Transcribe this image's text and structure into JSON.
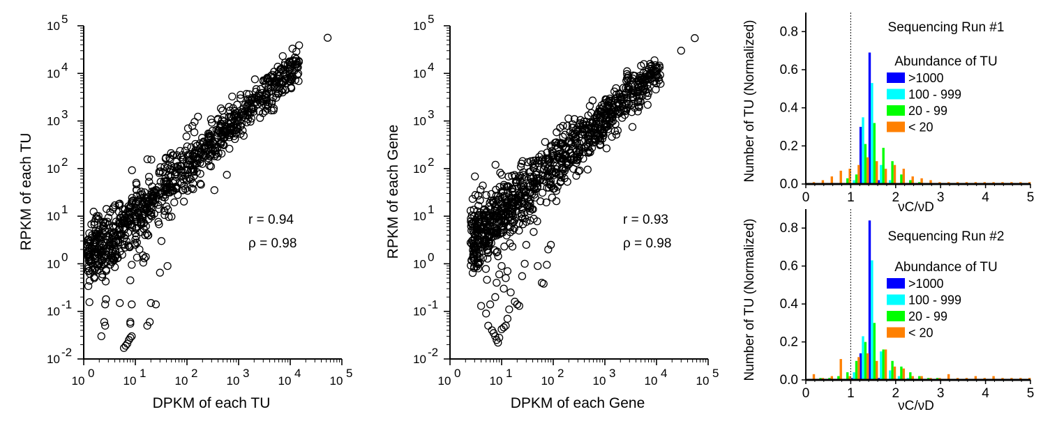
{
  "chart_data": [
    {
      "type": "scatter",
      "xlabel": "DPKM of each TU",
      "ylabel": "RPKM of each TU",
      "x_scale": "log",
      "y_scale": "log",
      "xlim": [
        1,
        100000
      ],
      "ylim": [
        0.01,
        100000
      ],
      "x_ticks": [
        "10^0",
        "10^1",
        "10^2",
        "10^3",
        "10^4",
        "10^5"
      ],
      "y_ticks": [
        "10^-2",
        "10^-1",
        "10^0",
        "10^1",
        "10^2",
        "10^3",
        "10^4",
        "10^5"
      ],
      "annotations": [
        "r = 0.94",
        "ρ = 0.98"
      ],
      "cloud_fit": {
        "slope": 1.0,
        "intercept": 0.05,
        "x_range": [
          1.2,
          15000
        ],
        "spread_dex": 0.22,
        "count": 900
      },
      "points": [
        [
          1.2,
          2.4
        ],
        [
          1.3,
          1.4
        ],
        [
          1.4,
          1.2
        ],
        [
          1.6,
          2.8
        ],
        [
          1.8,
          2.1
        ],
        [
          2.0,
          1.0
        ],
        [
          2.2,
          0.9
        ],
        [
          2.3,
          0.6
        ],
        [
          2.5,
          0.06
        ],
        [
          2.6,
          0.14
        ],
        [
          2.7,
          0.18
        ],
        [
          2.6,
          0.05
        ],
        [
          2.2,
          0.03
        ],
        [
          3.0,
          1.8
        ],
        [
          3.3,
          1.5
        ],
        [
          3.8,
          1.2
        ],
        [
          4.0,
          0.85
        ],
        [
          4.5,
          1.3
        ],
        [
          5.0,
          0.15
        ],
        [
          6.0,
          0.017
        ],
        [
          6.5,
          0.019
        ],
        [
          7.0,
          0.021
        ],
        [
          7.5,
          0.025
        ],
        [
          8.0,
          0.028
        ],
        [
          8.5,
          0.03
        ],
        [
          8.0,
          0.055
        ],
        [
          8.0,
          0.06
        ],
        [
          8.5,
          0.14
        ],
        [
          8.0,
          0.45
        ],
        [
          8.5,
          0.95
        ],
        [
          10,
          2.5
        ],
        [
          12,
          2.0
        ],
        [
          14,
          1.5
        ],
        [
          15,
          1.3
        ],
        [
          16,
          1.4
        ],
        [
          17,
          0.05
        ],
        [
          19,
          0.06
        ],
        [
          20,
          0.15
        ],
        [
          25,
          0.14
        ],
        [
          30,
          0.65
        ],
        [
          32,
          3.0
        ],
        [
          42,
          0.9
        ],
        [
          40,
          16
        ],
        [
          53000,
          56000
        ]
      ]
    },
    {
      "type": "scatter",
      "xlabel": "DPKM of each Gene",
      "ylabel": "RPKM of each Gene",
      "x_scale": "log",
      "y_scale": "log",
      "xlim": [
        1,
        100000
      ],
      "ylim": [
        0.01,
        100000
      ],
      "x_ticks": [
        "10^0",
        "10^1",
        "10^2",
        "10^3",
        "10^4",
        "10^5"
      ],
      "y_ticks": [
        "10^-2",
        "10^-1",
        "10^0",
        "10^1",
        "10^2",
        "10^3",
        "10^4",
        "10^5"
      ],
      "annotations": [
        "r = 0.93",
        "ρ = 0.98"
      ],
      "cloud_fit": {
        "slope": 1.0,
        "intercept": 0.05,
        "x_range": [
          2.5,
          12000
        ],
        "spread_dex": 0.24,
        "count": 950
      },
      "points": [
        [
          2.8,
          5.0
        ],
        [
          3.0,
          3.5
        ],
        [
          3.2,
          2.2
        ],
        [
          3.4,
          1.3
        ],
        [
          3.6,
          1.0
        ],
        [
          3.5,
          0.8
        ],
        [
          4.0,
          0.13
        ],
        [
          4.5,
          3.0
        ],
        [
          5.0,
          0.09
        ],
        [
          6.0,
          0.14
        ],
        [
          5.5,
          0.05
        ],
        [
          6.5,
          0.04
        ],
        [
          7.0,
          0.035
        ],
        [
          7.5,
          0.03
        ],
        [
          8.0,
          0.025
        ],
        [
          8.5,
          0.022
        ],
        [
          9.0,
          0.028
        ],
        [
          10,
          0.042
        ],
        [
          11,
          0.046
        ],
        [
          12,
          0.05
        ],
        [
          13,
          0.07
        ],
        [
          14,
          0.11
        ],
        [
          7.5,
          0.2
        ],
        [
          8.0,
          0.4
        ],
        [
          9.0,
          0.6
        ],
        [
          10,
          0.9
        ],
        [
          11,
          0.3
        ],
        [
          12,
          0.5
        ],
        [
          13,
          0.7
        ],
        [
          15,
          0.25
        ],
        [
          18,
          0.16
        ],
        [
          20,
          0.14
        ],
        [
          22,
          0.13
        ],
        [
          25,
          0.55
        ],
        [
          28,
          1.0
        ],
        [
          30,
          2.5
        ],
        [
          50,
          0.9
        ],
        [
          60,
          0.4
        ],
        [
          65,
          0.38
        ],
        [
          75,
          0.95
        ],
        [
          80,
          2.0
        ],
        [
          90,
          2.5
        ],
        [
          30000,
          30000
        ],
        [
          55000,
          55000
        ]
      ]
    },
    {
      "type": "bar",
      "title": "Sequencing Run #1",
      "xlabel": "νC/νD",
      "ylabel": "Number of TU\n(Normalized)",
      "xlim": [
        0,
        5
      ],
      "ylim": [
        0,
        0.9
      ],
      "x_ticks": [
        0,
        1,
        2,
        3,
        4,
        5
      ],
      "y_ticks": [
        0.0,
        0.2,
        0.4,
        0.6,
        0.8
      ],
      "legend_title": "Abundance of TU",
      "series": [
        {
          "name": ">1000",
          "color": "#0000ff",
          "values": [
            0,
            0,
            0,
            0,
            0,
            0,
            0.3,
            0.69,
            0.02,
            0,
            0,
            0,
            0,
            0,
            0,
            0,
            0,
            0,
            0,
            0,
            0,
            0,
            0,
            0,
            0
          ]
        },
        {
          "name": "100 - 999",
          "color": "#00ffff",
          "values": [
            0,
            0,
            0,
            0,
            0,
            0.02,
            0.35,
            0.53,
            0.1,
            0.02,
            0,
            0,
            0,
            0,
            0,
            0,
            0,
            0,
            0,
            0,
            0,
            0,
            0,
            0,
            0
          ]
        },
        {
          "name": "20 - 99",
          "color": "#00ff00",
          "values": [
            0,
            0,
            0,
            0,
            0.03,
            0.05,
            0.21,
            0.32,
            0.19,
            0.12,
            0.05,
            0.02,
            0.01,
            0.005,
            0.005,
            0,
            0,
            0,
            0,
            0,
            0,
            0,
            0,
            0,
            0
          ]
        },
        {
          "name": "< 20",
          "color": "#ff8000",
          "values": [
            0.01,
            0.02,
            0.04,
            0.07,
            0.08,
            0.1,
            0.14,
            0.12,
            0.08,
            0.1,
            0.08,
            0.04,
            0.03,
            0.02,
            0.01,
            0.01,
            0.01,
            0.01,
            0.01,
            0.01,
            0.01,
            0.01,
            0.01,
            0.01,
            0.01
          ]
        }
      ]
    },
    {
      "type": "bar",
      "title": "Sequencing Run #2",
      "xlabel": "νC/νD",
      "ylabel": "Number of TU\n(Normalized)",
      "xlim": [
        0,
        5
      ],
      "ylim": [
        0,
        0.9
      ],
      "x_ticks": [
        0,
        1,
        2,
        3,
        4,
        5
      ],
      "y_ticks": [
        0.0,
        0.2,
        0.4,
        0.6,
        0.8
      ],
      "legend_title": "Abundance of TU",
      "series": [
        {
          "name": ">1000",
          "color": "#0000ff",
          "values": [
            0,
            0,
            0,
            0,
            0,
            0.01,
            0.14,
            0.84,
            0.01,
            0,
            0,
            0,
            0,
            0,
            0,
            0,
            0,
            0,
            0,
            0,
            0,
            0,
            0,
            0,
            0
          ]
        },
        {
          "name": "100 - 999",
          "color": "#00ffff",
          "values": [
            0,
            0,
            0,
            0,
            0,
            0.04,
            0.23,
            0.63,
            0.15,
            0.05,
            0.02,
            0.01,
            0,
            0,
            0,
            0,
            0,
            0,
            0,
            0,
            0,
            0,
            0,
            0,
            0
          ]
        },
        {
          "name": "20 - 99",
          "color": "#00ff00",
          "values": [
            0,
            0.01,
            0.01,
            0.02,
            0.04,
            0.1,
            0.2,
            0.3,
            0.16,
            0.1,
            0.07,
            0.04,
            0.02,
            0.01,
            0.01,
            0,
            0,
            0,
            0,
            0,
            0,
            0,
            0,
            0,
            0
          ]
        },
        {
          "name": "< 20",
          "color": "#ff8000",
          "values": [
            0.03,
            0.01,
            0.02,
            0.11,
            0.02,
            0.12,
            0.14,
            0.1,
            0.16,
            0.07,
            0.06,
            0.02,
            0.02,
            0.01,
            0.01,
            0.03,
            0.01,
            0.01,
            0.02,
            0.01,
            0.02,
            0.01,
            0.01,
            0.01,
            0.01
          ]
        }
      ]
    }
  ]
}
